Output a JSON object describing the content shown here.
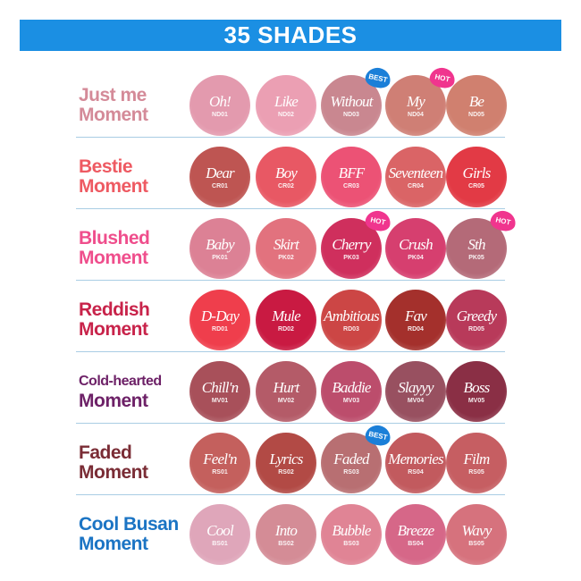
{
  "title": "35 SHADES",
  "colors": {
    "banner": "#1b8fe3",
    "best_badge": "#1b7fd8",
    "hot_badge": "#f0358e",
    "divider": "#a9cde4"
  },
  "groups": [
    {
      "line1": "Just me",
      "line2": "Moment",
      "color": "#d48a98",
      "shades": [
        {
          "name": "Oh!",
          "code": "ND01",
          "color": "#e39aae"
        },
        {
          "name": "Like",
          "code": "ND02",
          "color": "#eb9fb3"
        },
        {
          "name": "Without",
          "code": "ND03",
          "color": "#c98790",
          "badge": "BEST"
        },
        {
          "name": "My",
          "code": "ND04",
          "color": "#cf7f75",
          "badge": "HOT"
        },
        {
          "name": "Be",
          "code": "ND05",
          "color": "#d0806f"
        }
      ]
    },
    {
      "line1": "Bestie",
      "line2": "Moment",
      "color": "#ee5a62",
      "shades": [
        {
          "name": "Dear",
          "code": "CR01",
          "color": "#be5552"
        },
        {
          "name": "Boy",
          "code": "CR02",
          "color": "#e85864"
        },
        {
          "name": "BFF",
          "code": "CR03",
          "color": "#ec5275"
        },
        {
          "name": "Seventeen",
          "code": "CR04",
          "color": "#da6466"
        },
        {
          "name": "Girls",
          "code": "CR05",
          "color": "#e23a45"
        }
      ]
    },
    {
      "line1": "Blushed",
      "line2": "Moment",
      "color": "#ef4e8c",
      "shades": [
        {
          "name": "Baby",
          "code": "PK01",
          "color": "#dc8195"
        },
        {
          "name": "Skirt",
          "code": "PK02",
          "color": "#e2727e"
        },
        {
          "name": "Cherry",
          "code": "PK03",
          "color": "#cf2f5d",
          "badge": "HOT"
        },
        {
          "name": "Crush",
          "code": "PK04",
          "color": "#d63f6f"
        },
        {
          "name": "Sth",
          "code": "PK05",
          "color": "#b46a78",
          "badge": "HOT"
        }
      ]
    },
    {
      "line1": "Reddish",
      "line2": "Moment",
      "color": "#c8234a",
      "shades": [
        {
          "name": "D-Day",
          "code": "RD01",
          "color": "#ef3e4c"
        },
        {
          "name": "Mule",
          "code": "RD02",
          "color": "#c91a42"
        },
        {
          "name": "Ambitious",
          "code": "RD03",
          "color": "#cc4645"
        },
        {
          "name": "Fav",
          "code": "RD04",
          "color": "#a4302c"
        },
        {
          "name": "Greedy",
          "code": "RD05",
          "color": "#b83a5a"
        }
      ]
    },
    {
      "line1": "Cold-hearted",
      "line2": "Moment",
      "color": "#6d2167",
      "small": true,
      "shades": [
        {
          "name": "Chill'n",
          "code": "MV01",
          "color": "#a8505a"
        },
        {
          "name": "Hurt",
          "code": "MV02",
          "color": "#b45b68"
        },
        {
          "name": "Baddie",
          "code": "MV03",
          "color": "#bc4d6c"
        },
        {
          "name": "Slayyy",
          "code": "MV04",
          "color": "#985060"
        },
        {
          "name": "Boss",
          "code": "MV05",
          "color": "#8a2f45"
        }
      ]
    },
    {
      "line1": "Faded",
      "line2": "Moment",
      "color": "#7a2c35",
      "shades": [
        {
          "name": "Feel'n",
          "code": "RS01",
          "color": "#c4605d"
        },
        {
          "name": "Lyrics",
          "code": "RS02",
          "color": "#b24a45"
        },
        {
          "name": "Faded",
          "code": "RS03",
          "color": "#b86f72",
          "badge": "BEST"
        },
        {
          "name": "Memories",
          "code": "RS04",
          "color": "#c25a5e"
        },
        {
          "name": "Film",
          "code": "RS05",
          "color": "#c65e62"
        }
      ]
    },
    {
      "line1": "Cool Busan",
      "line2": "Moment",
      "color": "#1b74c4",
      "shades": [
        {
          "name": "Cool",
          "code": "BS01",
          "color": "#dfa6ba"
        },
        {
          "name": "Into",
          "code": "BS02",
          "color": "#d48c96"
        },
        {
          "name": "Bubble",
          "code": "BS03",
          "color": "#e08495"
        },
        {
          "name": "Breeze",
          "code": "BS04",
          "color": "#d66788"
        },
        {
          "name": "Wavy",
          "code": "BS05",
          "color": "#d6727d"
        }
      ]
    }
  ]
}
